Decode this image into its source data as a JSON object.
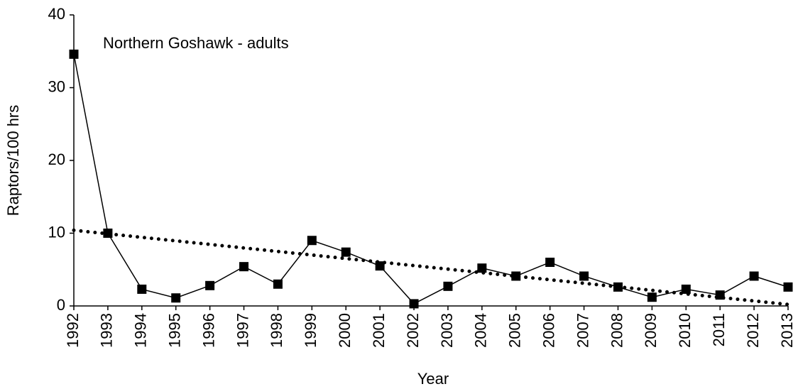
{
  "chart_data": {
    "type": "line",
    "ylabel": "Raptors/100 hrs",
    "xlabel": "Year",
    "x": [
      1992,
      1993,
      1994,
      1995,
      1996,
      1997,
      1998,
      1999,
      2000,
      2001,
      2002,
      2003,
      2004,
      2005,
      2006,
      2007,
      2008,
      2009,
      2010,
      2011,
      2012,
      2013
    ],
    "xlim": [
      1992,
      2013
    ],
    "series": [
      {
        "name": "Northern Goshawk - adults",
        "color": "#000000",
        "values": [
          34.6,
          10.0,
          2.3,
          1.1,
          2.8,
          5.4,
          3.0,
          9.0,
          7.4,
          5.5,
          0.3,
          2.7,
          5.2,
          4.1,
          6.0,
          4.1,
          2.6,
          1.2,
          2.3,
          1.5,
          4.1,
          2.6
        ]
      }
    ],
    "trend": {
      "x": [
        1992,
        2013
      ],
      "values": [
        10.4,
        0.2
      ],
      "color": "#000000"
    },
    "ylim": [
      0,
      40
    ],
    "yticks": [
      0,
      10,
      20,
      30,
      40
    ],
    "grid": false
  }
}
